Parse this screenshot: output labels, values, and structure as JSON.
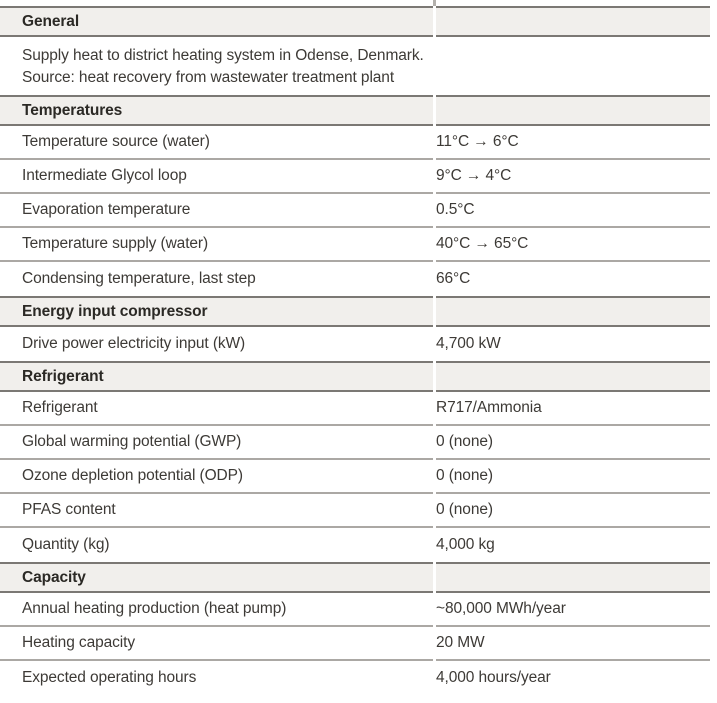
{
  "colors": {
    "header_bg": "#f1efec",
    "header_border": "#7b7874",
    "row_separator": "#aba8a4",
    "header_text": "#2b2925",
    "body_text": "#3d3a36"
  },
  "table": {
    "sections": [
      {
        "title": "General",
        "description_lines": [
          "Supply heat to district heating system in Odense, Denmark.",
          "Source: heat recovery from wastewater treatment plant"
        ]
      },
      {
        "title": "Temperatures",
        "rows": [
          [
            "Temperature source (water)",
            "11°C → 6°C"
          ],
          [
            "Intermediate Glycol loop",
            "9°C → 4°C"
          ],
          [
            "Evaporation temperature",
            "0.5°C"
          ],
          [
            "Temperature supply (water)",
            "40°C → 65°C"
          ],
          [
            "Condensing temperature, last step",
            "66°C"
          ]
        ]
      },
      {
        "title": "Energy input compressor",
        "rows": [
          [
            "Drive power electricity input (kW)",
            "4,700 kW"
          ]
        ]
      },
      {
        "title": "Refrigerant",
        "rows": [
          [
            "Refrigerant",
            "R717/Ammonia"
          ],
          [
            "Global warming potential (GWP)",
            "0 (none)"
          ],
          [
            "Ozone depletion potential (ODP)",
            "0 (none)"
          ],
          [
            "PFAS content",
            "0 (none)"
          ],
          [
            "Quantity (kg)",
            "4,000 kg"
          ]
        ]
      },
      {
        "title": "Capacity",
        "rows": [
          [
            "Annual heating production (heat pump)",
            "~80,000 MWh/year"
          ],
          [
            "Heating capacity",
            "20 MW"
          ],
          [
            "Expected operating hours",
            "4,000 hours/year"
          ]
        ]
      }
    ]
  }
}
